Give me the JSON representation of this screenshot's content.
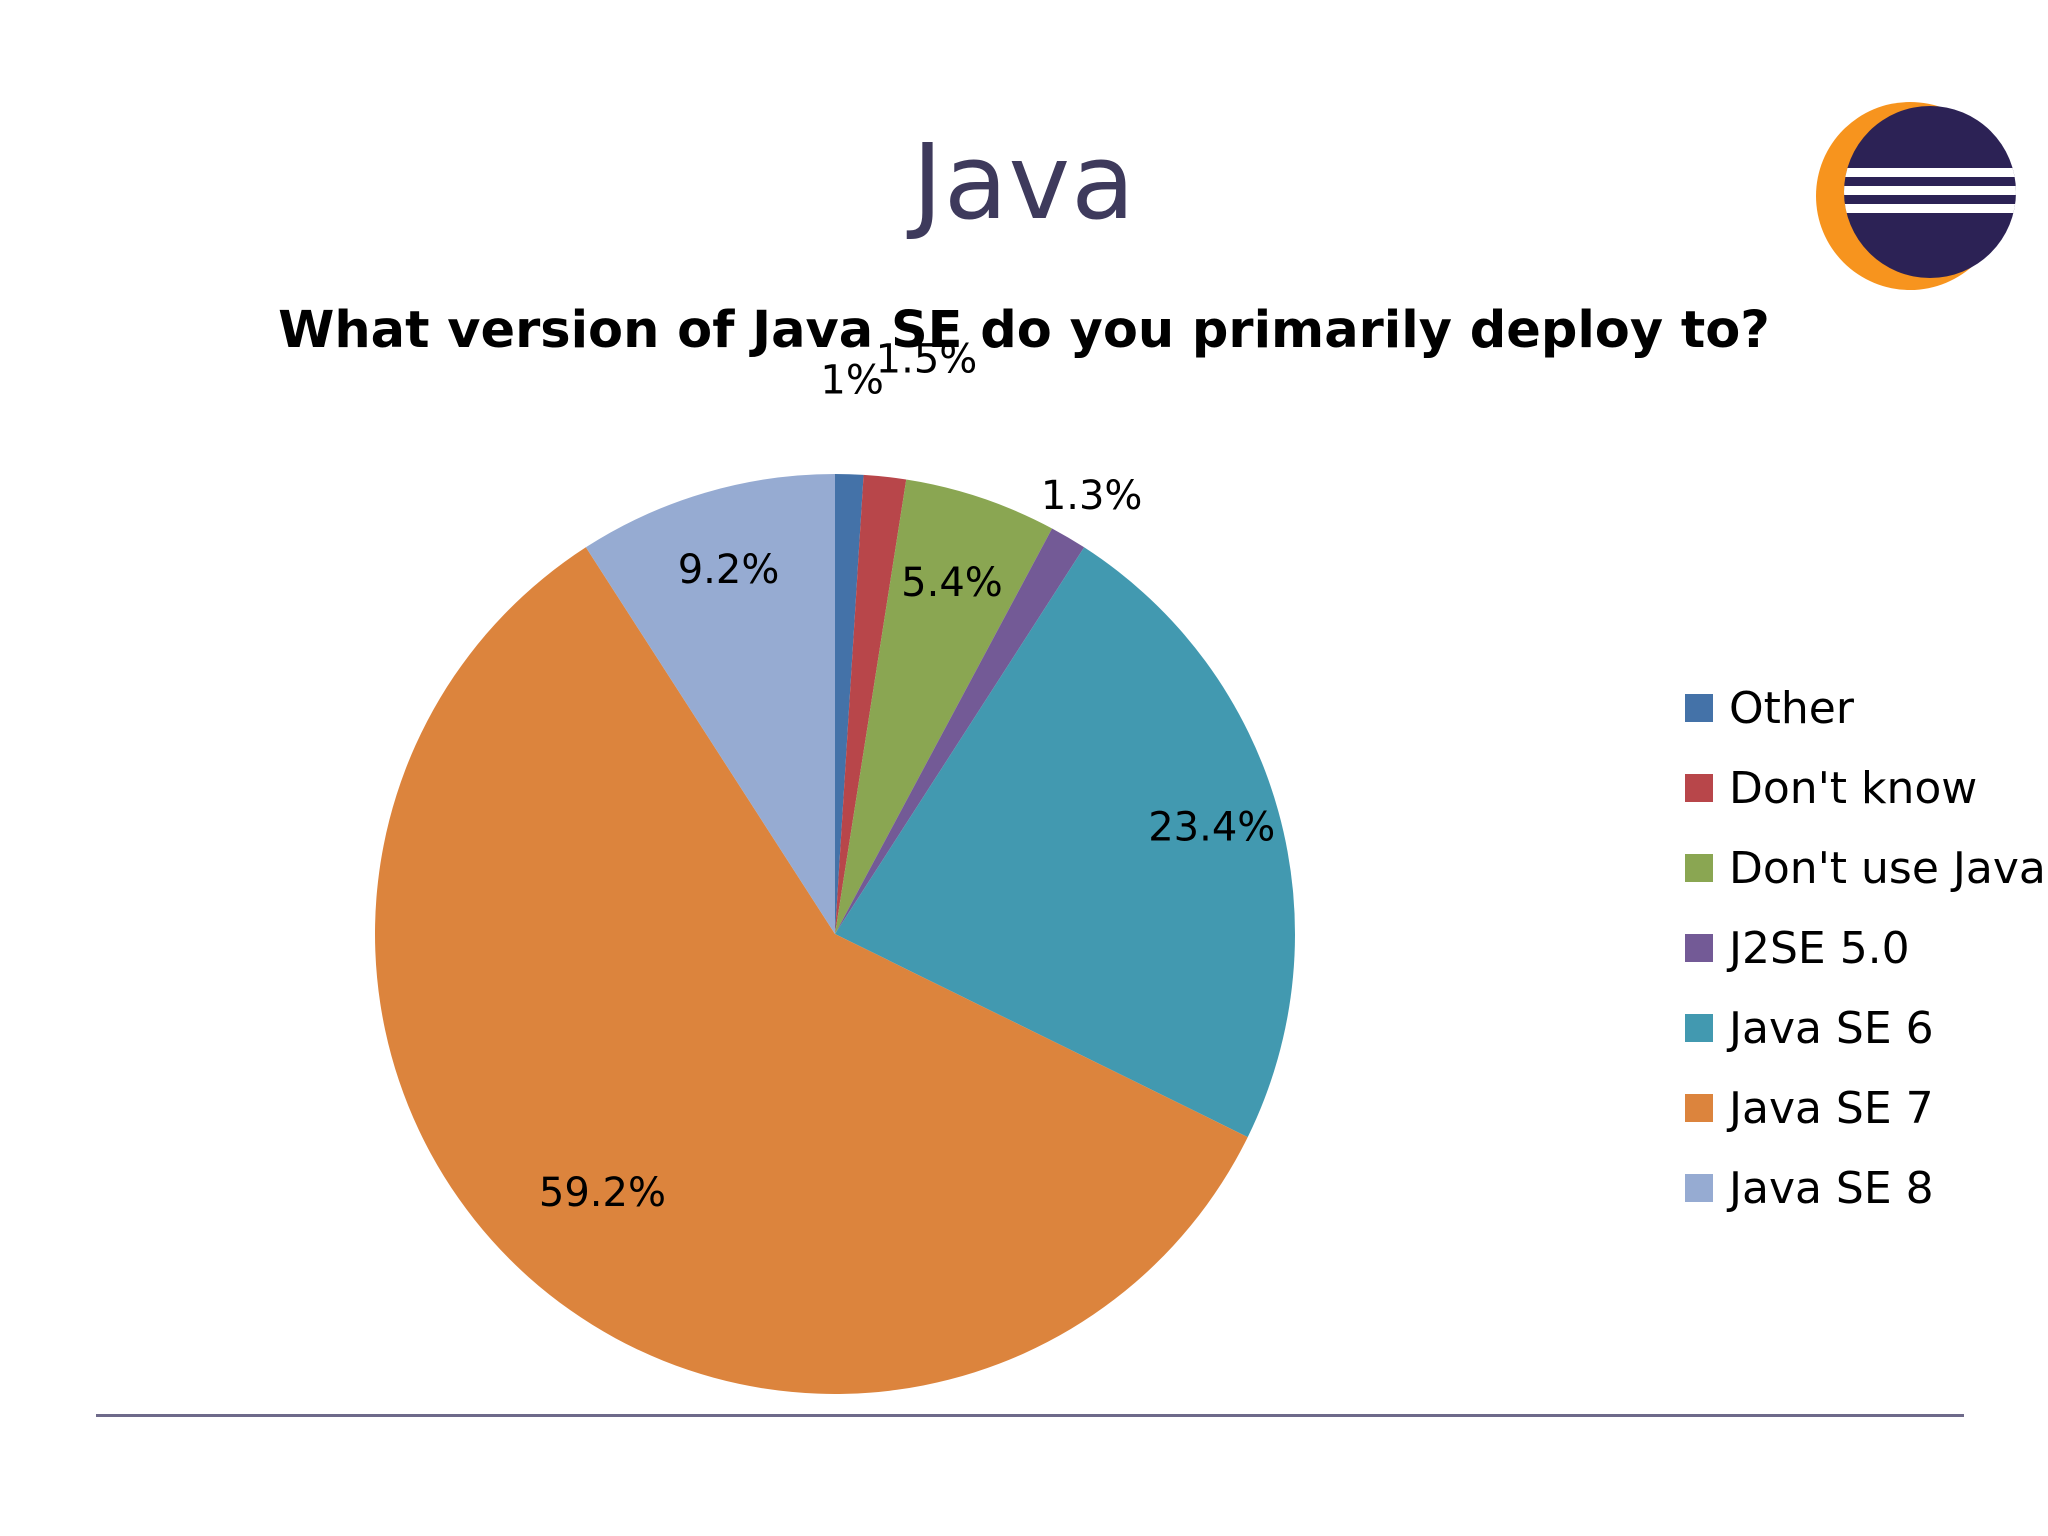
{
  "slide": {
    "title": "Java",
    "logo_icon": "eclipse-logo-icon"
  },
  "chart_data": {
    "type": "pie",
    "title": "What version of Java SE do you primarily deploy to?",
    "legend_position": "right",
    "slices": [
      {
        "name": "Other",
        "value": 1.0,
        "label": "1%",
        "color": "#4472a8"
      },
      {
        "name": "Don't know",
        "value": 1.5,
        "label": "1.5%",
        "color": "#b8464a"
      },
      {
        "name": "Don't use Java",
        "value": 5.4,
        "label": "5.4%",
        "color": "#8aa652"
      },
      {
        "name": "J2SE 5.0",
        "value": 1.3,
        "label": "1.3%",
        "color": "#735a96"
      },
      {
        "name": "Java SE 6",
        "value": 23.4,
        "label": "23.4%",
        "color": "#4299b0"
      },
      {
        "name": "Java SE 7",
        "value": 59.2,
        "label": "59.2%",
        "color": "#dc843d"
      },
      {
        "name": "Java SE 8",
        "value": 9.2,
        "label": "9.2%",
        "color": "#96abd2"
      }
    ]
  }
}
